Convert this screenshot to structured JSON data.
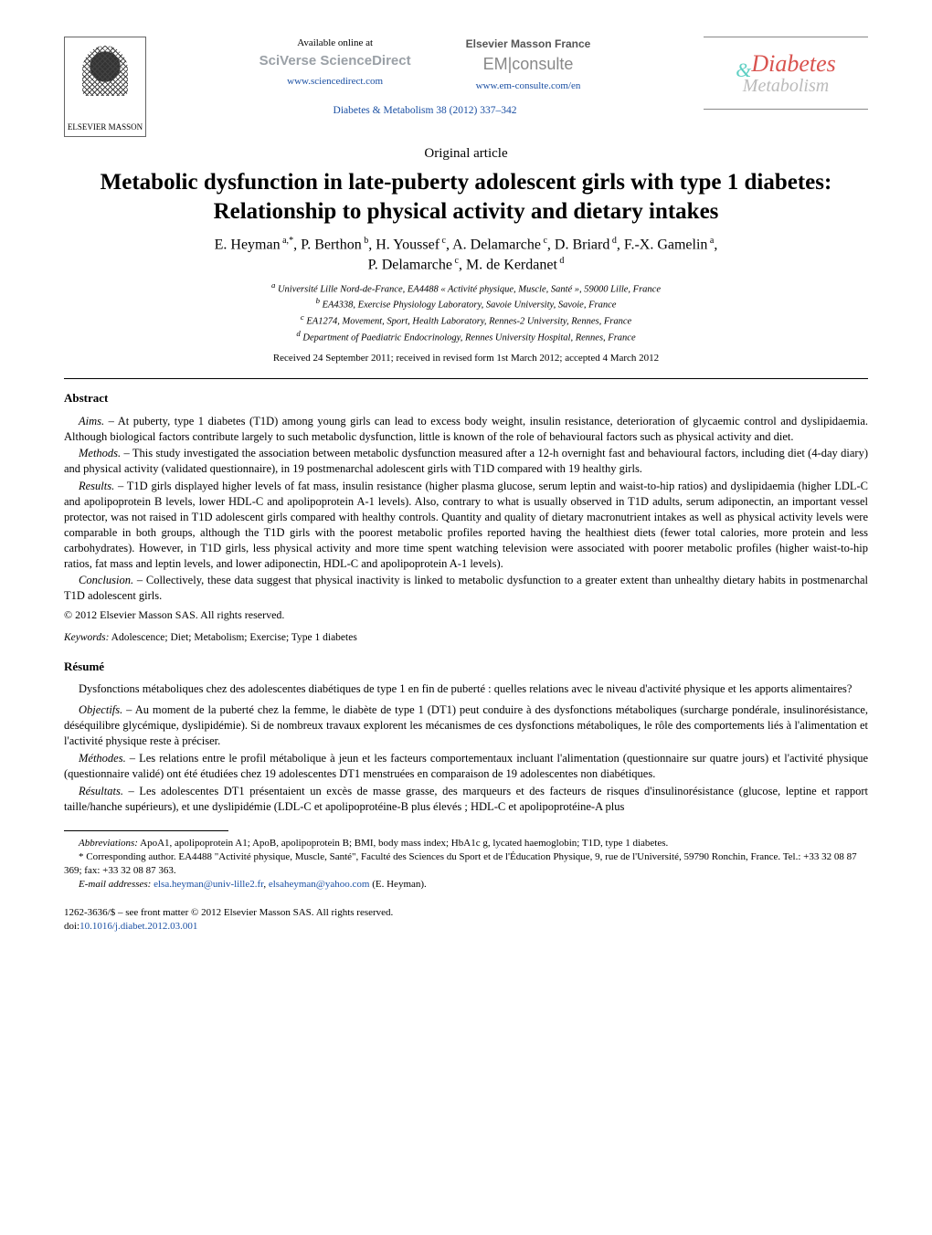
{
  "header": {
    "publisher_logo_name": "ELSEVIER MASSON",
    "available_online": "Available online at",
    "sciverse": "SciVerse ScienceDirect",
    "sciencedirect_url": "www.sciencedirect.com",
    "em_publisher": "Elsevier Masson France",
    "em_prefix": "EM",
    "em_consulte": "consulte",
    "em_url": "www.em-consulte.com/en",
    "journal_ref": "Diabetes & Metabolism 38 (2012) 337–342",
    "journal_logo_word1": "Diabetes",
    "journal_logo_word2": "Metabolism",
    "journal_logo_amp": "&"
  },
  "article": {
    "type": "Original article",
    "title": "Metabolic dysfunction in late-puberty adolescent girls with type 1 diabetes: Relationship to physical activity and dietary intakes",
    "authors_html": "E. Heyman a,*, P. Berthon b, H. Youssef c, A. Delamarche c, D. Briard d, F.-X. Gamelin a, P. Delamarche c, M. de Kerdanet d",
    "affiliations": {
      "a": "Université Lille Nord-de-France, EA4488 « Activité physique, Muscle, Santé », 59000 Lille, France",
      "b": "EA4338, Exercise Physiology Laboratory, Savoie University, Savoie, France",
      "c": "EA1274, Movement, Sport, Health Laboratory, Rennes-2 University, Rennes, France",
      "d": "Department of Paediatric Endocrinology, Rennes University Hospital, Rennes, France"
    },
    "dates": "Received 24 September 2011; received in revised form 1st March 2012; accepted 4 March 2012"
  },
  "abstract": {
    "heading": "Abstract",
    "aims_label": "Aims. –",
    "aims": "At puberty, type 1 diabetes (T1D) among young girls can lead to excess body weight, insulin resistance, deterioration of glycaemic control and dyslipidaemia. Although biological factors contribute largely to such metabolic dysfunction, little is known of the role of behavioural factors such as physical activity and diet.",
    "methods_label": "Methods. –",
    "methods": "This study investigated the association between metabolic dysfunction measured after a 12-h overnight fast and behavioural factors, including diet (4-day diary) and physical activity (validated questionnaire), in 19 postmenarchal adolescent girls with T1D compared with 19 healthy girls.",
    "results_label": "Results. –",
    "results": "T1D girls displayed higher levels of fat mass, insulin resistance (higher plasma glucose, serum leptin and waist-to-hip ratios) and dyslipidaemia (higher LDL-C and apolipoprotein B levels, lower HDL-C and apolipoprotein A-1 levels). Also, contrary to what is usually observed in T1D adults, serum adiponectin, an important vessel protector, was not raised in T1D adolescent girls compared with healthy controls. Quantity and quality of dietary macronutrient intakes as well as physical activity levels were comparable in both groups, although the T1D girls with the poorest metabolic profiles reported having the healthiest diets (fewer total calories, more protein and less carbohydrates). However, in T1D girls, less physical activity and more time spent watching television were associated with poorer metabolic profiles (higher waist-to-hip ratios, fat mass and leptin levels, and lower adiponectin, HDL-C and apolipoprotein A-1 levels).",
    "conclusion_label": "Conclusion. –",
    "conclusion": "Collectively, these data suggest that physical inactivity is linked to metabolic dysfunction to a greater extent than unhealthy dietary habits in postmenarchal T1D adolescent girls.",
    "copyright": "© 2012 Elsevier Masson SAS. All rights reserved.",
    "keywords_label": "Keywords:",
    "keywords": "Adolescence; Diet; Metabolism; Exercise; Type 1 diabetes"
  },
  "resume": {
    "heading": "Résumé",
    "title_fr": "Dysfonctions métaboliques chez des adolescentes diabétiques de type 1 en fin de puberté : quelles relations avec le niveau d'activité physique et les apports alimentaires?",
    "objectifs_label": "Objectifs. –",
    "objectifs": "Au moment de la puberté chez la femme, le diabète de type 1 (DT1) peut conduire à des dysfonctions métaboliques (surcharge pondérale, insulinorésistance, déséquilibre glycémique, dyslipidémie). Si de nombreux travaux explorent les mécanismes de ces dysfonctions métaboliques, le rôle des comportements liés à l'alimentation et l'activité physique reste à préciser.",
    "methodes_label": "Méthodes. –",
    "methodes": "Les relations entre le profil métabolique à jeun et les facteurs comportementaux incluant l'alimentation (questionnaire sur quatre jours) et l'activité physique (questionnaire validé) ont été étudiées chez 19 adolescentes DT1 menstruées en comparaison de 19 adolescentes non diabétiques.",
    "resultats_label": "Résultats. –",
    "resultats": "Les adolescentes DT1 présentaient un excès de masse grasse, des marqueurs et des facteurs de risques d'insulinorésistance (glucose, leptine et rapport taille/hanche supérieurs), et une dyslipidémie (LDL-C et apolipoprotéine-B plus élevés ; HDL-C et apolipoprotéine-A plus"
  },
  "footnotes": {
    "abbrev_label": "Abbreviations:",
    "abbreviations": "ApoA1, apolipoprotein A1; ApoB, apolipoprotein B; BMI, body mass index; HbA1c g, lycated haemoglobin; T1D, type 1 diabetes.",
    "corr_label": "* Corresponding author.",
    "corr_text": "EA4488 \"Activité physique, Muscle, Santé\", Faculté des Sciences du Sport et de l'Éducation Physique, 9, rue de l'Université, 59790 Ronchin, France. Tel.: +33 32 08 87 369; fax: +33 32 08 87 363.",
    "email_label": "E-mail addresses:",
    "email1": "elsa.heyman@univ-lille2.fr",
    "email2": "elsaheyman@yahoo.com",
    "email_author": "(E. Heyman)."
  },
  "bottom": {
    "issn_line": "1262-3636/$ – see front matter © 2012 Elsevier Masson SAS. All rights reserved.",
    "doi_label": "doi:",
    "doi": "10.1016/j.diabet.2012.03.001"
  },
  "colors": {
    "link": "#1a4fa3",
    "journal_red": "#d9534f",
    "journal_teal": "#5ecfc3",
    "journal_grey": "#bbbbbb",
    "text": "#000000",
    "background": "#ffffff"
  },
  "typography": {
    "title_fontsize_pt": 18,
    "authors_fontsize_pt": 12,
    "body_fontsize_pt": 9.5,
    "article_type_fontsize_pt": 11
  }
}
